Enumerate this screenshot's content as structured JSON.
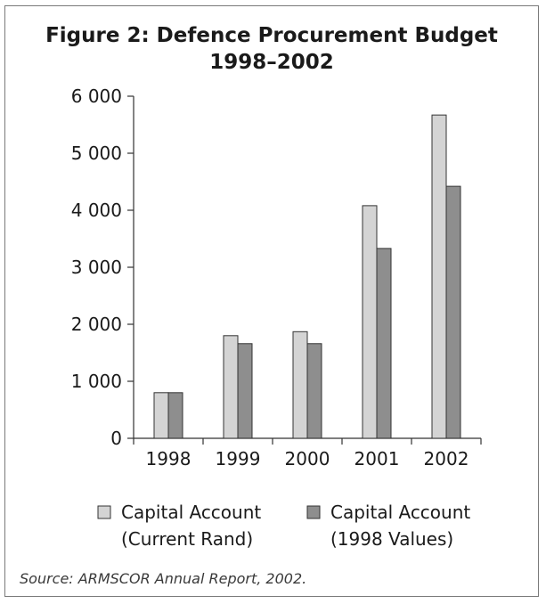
{
  "chart_data": {
    "type": "bar",
    "title_lines": [
      "Figure 2: Defence Procurement Budget",
      "1998–2002"
    ],
    "categories": [
      "1998",
      "1999",
      "2000",
      "2001",
      "2002"
    ],
    "series": [
      {
        "name": "Capital Account (Current Rand)",
        "legend_lines": [
          "Capital Account",
          "(Current Rand)"
        ],
        "values": [
          800,
          1800,
          1870,
          4080,
          5670
        ],
        "color": "#d4d4d4"
      },
      {
        "name": "Capital Account (1998 Values)",
        "legend_lines": [
          "Capital Account",
          "(1998 Values)"
        ],
        "values": [
          800,
          1660,
          1660,
          3330,
          4420
        ],
        "color": "#8e8e8e"
      }
    ],
    "y_ticks": [
      0,
      1000,
      2000,
      3000,
      4000,
      5000,
      6000
    ],
    "y_tick_labels": [
      "0",
      "1 000",
      "2 000",
      "3 000",
      "4 000",
      "5 000",
      "6 000"
    ],
    "ylim": [
      0,
      6000
    ],
    "grid": false,
    "legend_position": "bottom"
  },
  "source": "Source: ARMSCOR Annual Report, 2002."
}
